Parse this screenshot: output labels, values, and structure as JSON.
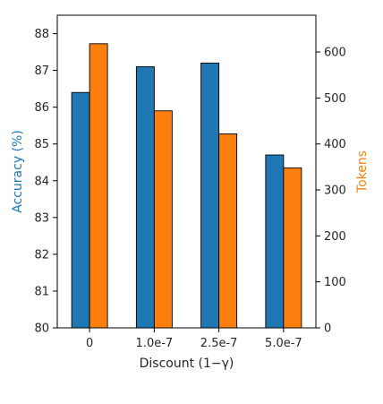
{
  "chart_data": {
    "type": "bar",
    "categories": [
      "0",
      "1.0e-7",
      "2.5e-7",
      "5.0e-7"
    ],
    "xlabel": "Discount (1−γ)",
    "series": [
      {
        "axis": "left",
        "values": [
          86.4,
          87.1,
          87.2,
          84.7
        ],
        "color": "#1f77b4"
      },
      {
        "axis": "right",
        "values": [
          618,
          472,
          422,
          348
        ],
        "color": "#ff7f0e"
      }
    ],
    "y_left": {
      "label": "Accuracy (%)",
      "color": "#1f77b4",
      "ylim": [
        80,
        88.5
      ],
      "ticks": [
        "80",
        "81",
        "82",
        "83",
        "84",
        "85",
        "86",
        "87",
        "88"
      ]
    },
    "y_right": {
      "label": "Tokens",
      "color": "#ff7f0e",
      "ylim": [
        0,
        680
      ],
      "ticks": [
        "0",
        "100",
        "200",
        "300",
        "400",
        "500",
        "600"
      ]
    },
    "grid": false
  }
}
